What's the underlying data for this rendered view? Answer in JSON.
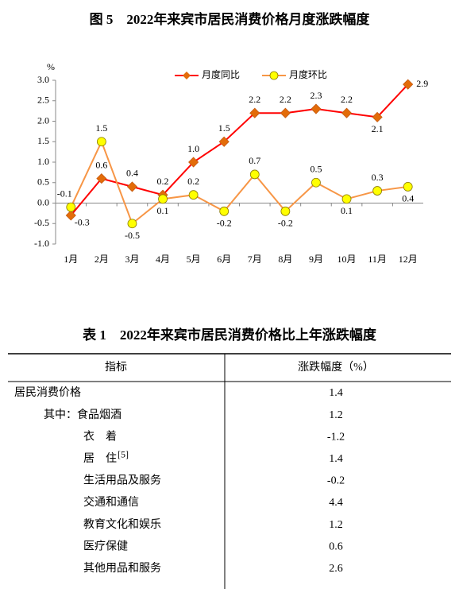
{
  "chart_data": {
    "type": "line",
    "title": "图 5　2022年来宾市居民消费价格月度涨跌幅度",
    "y_unit": "%",
    "categories": [
      "1月",
      "2月",
      "3月",
      "4月",
      "5月",
      "6月",
      "7月",
      "8月",
      "9月",
      "10月",
      "11月",
      "12月"
    ],
    "series": [
      {
        "name": "月度同比",
        "color": "#e36c09",
        "line_color": "#ff0000",
        "marker": "diamond",
        "values": [
          -0.3,
          0.6,
          0.4,
          0.2,
          1.0,
          1.5,
          2.2,
          2.2,
          2.3,
          2.2,
          2.1,
          2.9
        ],
        "value_labels": [
          "-0.3",
          "0.6",
          "0.4",
          "0.2",
          "1.0",
          "1.5",
          "2.2",
          "2.2",
          "2.3",
          "2.2",
          "2.1",
          "2.9"
        ]
      },
      {
        "name": "月度环比",
        "color": "#ffff00",
        "line_color": "#f79646",
        "marker": "circle",
        "values": [
          -0.1,
          1.5,
          -0.5,
          0.1,
          0.2,
          -0.2,
          0.7,
          -0.2,
          0.5,
          0.1,
          0.3,
          0.4
        ]
      }
    ],
    "ylim": [
      -1,
      3
    ],
    "yticks": [
      {
        "value": -1,
        "label": "-1.0"
      },
      -0.5,
      {
        "value": 0,
        "label": "0.0"
      },
      0.5,
      {
        "value": 1,
        "label": "1.0"
      },
      1.5,
      {
        "value": 2,
        "label": "2.0"
      },
      2.5,
      {
        "value": 3,
        "label": "3.0"
      }
    ],
    "grid": false,
    "legend": "top"
  },
  "table": {
    "title": "表 1　2022年来宾市居民消费价格比上年涨跌幅度",
    "header": [
      "指标",
      "涨跌幅度（%）"
    ],
    "rows": [
      {
        "label": "居民消费价格",
        "value": 1.4
      },
      {
        "label": "其中：食品烟酒",
        "value": 1.2
      },
      {
        "label": "衣　着",
        "value": -1.2
      },
      {
        "label": "居　住",
        "note": "[5]",
        "value": 1.4
      },
      {
        "label": "生活用品及服务",
        "value": -0.2
      },
      {
        "label": "交通和通信",
        "value": 4.4
      },
      {
        "label": "教育文化和娱乐",
        "value": 1.2
      },
      {
        "label": "医疗保健",
        "value": 0.6
      },
      {
        "label": "其他用品和服务",
        "value": 2.6
      }
    ]
  }
}
